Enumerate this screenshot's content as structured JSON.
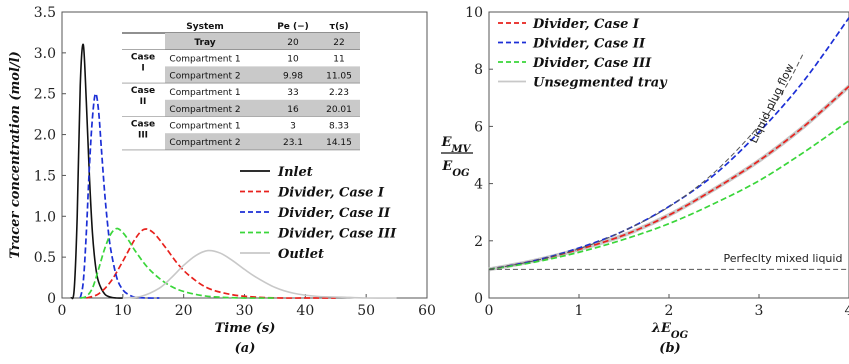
{
  "chart_data": [
    {
      "type": "line",
      "panel_label": "(a)",
      "xlabel": "Time (s)",
      "ylabel": "Tracer concentration (mol/l)",
      "xlim": [
        0,
        60
      ],
      "ylim": [
        0,
        3.5
      ],
      "xticks": [
        "0",
        "10",
        "20",
        "30",
        "40",
        "50",
        "60"
      ],
      "yticks": [
        "0",
        "0.5",
        "1.0",
        "1.5",
        "2.0",
        "2.5",
        "3.0",
        "3.5"
      ],
      "grid": false,
      "legend_position": "center-right",
      "series": [
        {
          "name": "Inlet",
          "color": "#111111",
          "dash": "solid",
          "x": [
            1.5,
            2,
            2.5,
            3,
            3.5,
            4,
            4.5,
            5,
            5.5,
            6,
            7,
            8,
            9,
            10
          ],
          "y": [
            0,
            0.1,
            1.0,
            2.6,
            3.1,
            2.4,
            1.5,
            0.8,
            0.4,
            0.2,
            0.05,
            0.01,
            0,
            0
          ]
        },
        {
          "name": "Divider, Case I",
          "color": "#e8211d",
          "dash": "dashed",
          "x": [
            4,
            6,
            8,
            10,
            12,
            13.5,
            15,
            17,
            19,
            21,
            24,
            28,
            32,
            36,
            40,
            45
          ],
          "y": [
            0,
            0.05,
            0.2,
            0.45,
            0.72,
            0.84,
            0.8,
            0.62,
            0.42,
            0.27,
            0.12,
            0.04,
            0.01,
            0,
            0,
            0
          ]
        },
        {
          "name": "Divider, Case II",
          "color": "#1c2fd6",
          "dash": "dashed",
          "x": [
            3,
            3.5,
            4,
            4.5,
            5,
            5.5,
            6,
            6.5,
            7,
            7.5,
            8,
            9,
            10,
            11,
            12,
            14,
            16
          ],
          "y": [
            0,
            0.2,
            0.8,
            1.6,
            2.2,
            2.5,
            2.3,
            1.8,
            1.3,
            0.9,
            0.6,
            0.25,
            0.1,
            0.04,
            0.01,
            0,
            0
          ]
        },
        {
          "name": "Divider, Case III",
          "color": "#3ad63a",
          "dash": "dashed",
          "x": [
            3,
            4,
            5,
            6,
            7,
            8,
            9,
            10,
            11,
            12,
            14,
            16,
            18,
            20,
            23,
            26,
            30,
            35
          ],
          "y": [
            0,
            0.02,
            0.12,
            0.35,
            0.6,
            0.78,
            0.85,
            0.8,
            0.7,
            0.58,
            0.38,
            0.24,
            0.14,
            0.08,
            0.03,
            0.01,
            0,
            0
          ]
        },
        {
          "name": "Outlet",
          "color": "#c8c8c8",
          "dash": "solid",
          "x": [
            10,
            13,
            16,
            18,
            20,
            22,
            24,
            26,
            28,
            30,
            32,
            35,
            38,
            42,
            46,
            50,
            55
          ],
          "y": [
            0,
            0.02,
            0.12,
            0.25,
            0.4,
            0.52,
            0.58,
            0.55,
            0.46,
            0.35,
            0.25,
            0.13,
            0.06,
            0.02,
            0.01,
            0,
            0
          ]
        }
      ],
      "table": {
        "headers": [
          "System",
          "Pe (−)",
          "τ(s)"
        ],
        "rows": [
          {
            "group": "",
            "label": "Tray",
            "pe": "20",
            "tau": "22",
            "shaded": true
          },
          {
            "group": "Case I",
            "label": "Compartment 1",
            "pe": "10",
            "tau": "11",
            "shaded": false
          },
          {
            "group": "",
            "label": "Compartment 2",
            "pe": "9.98",
            "tau": "11.05",
            "shaded": true
          },
          {
            "group": "Case II",
            "label": "Compartment 1",
            "pe": "33",
            "tau": "2.23",
            "shaded": false
          },
          {
            "group": "",
            "label": "Compartment 2",
            "pe": "16",
            "tau": "20.01",
            "shaded": true
          },
          {
            "group": "Case III",
            "label": "Compartment 1",
            "pe": "3",
            "tau": "8.33",
            "shaded": false
          },
          {
            "group": "",
            "label": "Compartment 2",
            "pe": "23.1",
            "tau": "14.15",
            "shaded": true
          }
        ]
      }
    },
    {
      "type": "line",
      "panel_label": "(b)",
      "xlabel": "λE_OG",
      "ylabel": "E_MV / E_OG",
      "xlim": [
        0,
        4
      ],
      "ylim": [
        0,
        10
      ],
      "xticks": [
        "0",
        "1",
        "2",
        "3",
        "4"
      ],
      "yticks": [
        "0",
        "2",
        "4",
        "6",
        "8",
        "10"
      ],
      "grid": false,
      "legend_position": "top-left",
      "series": [
        {
          "name": "Divider, Case I",
          "color": "#e8211d",
          "dash": "dashed",
          "x": [
            0,
            0.5,
            1,
            1.5,
            2,
            2.5,
            3,
            3.5,
            4
          ],
          "y": [
            1.0,
            1.3,
            1.7,
            2.2,
            2.9,
            3.8,
            4.8,
            6.0,
            7.4
          ]
        },
        {
          "name": "Divider, Case II",
          "color": "#1c2fd6",
          "dash": "dashed",
          "x": [
            0,
            0.5,
            1,
            1.5,
            2,
            2.5,
            3,
            3.5,
            4
          ],
          "y": [
            1.0,
            1.3,
            1.75,
            2.35,
            3.2,
            4.3,
            5.8,
            7.6,
            9.8
          ]
        },
        {
          "name": "Divider, Case III",
          "color": "#3ad63a",
          "dash": "dashed",
          "x": [
            0,
            0.5,
            1,
            1.5,
            2,
            2.5,
            3,
            3.5,
            4
          ],
          "y": [
            1.0,
            1.25,
            1.6,
            2.05,
            2.6,
            3.3,
            4.1,
            5.1,
            6.2
          ]
        },
        {
          "name": "Unsegmented tray",
          "color": "#c8c8c8",
          "dash": "solid",
          "x": [
            0,
            0.5,
            1,
            1.5,
            2,
            2.5,
            3,
            3.5,
            4
          ],
          "y": [
            1.0,
            1.3,
            1.7,
            2.2,
            2.9,
            3.8,
            4.8,
            6.0,
            7.4
          ]
        },
        {
          "name": "Liquid plug flow",
          "color": "#555555",
          "dash": "dashed",
          "legend": false,
          "x": [
            0,
            0.5,
            1,
            1.5,
            2,
            2.5,
            3,
            3.3,
            3.5
          ],
          "y": [
            1.0,
            1.3,
            1.72,
            2.35,
            3.19,
            4.38,
            6.03,
            7.4,
            8.6
          ]
        },
        {
          "name": "Perfeclty mixed liquid",
          "color": "#555555",
          "dash": "dashed",
          "legend": false,
          "x": [
            0,
            4
          ],
          "y": [
            1.0,
            1.0
          ]
        }
      ],
      "annotations": [
        "Liquid plug flow",
        "Perfeclty mixed liquid"
      ]
    }
  ]
}
